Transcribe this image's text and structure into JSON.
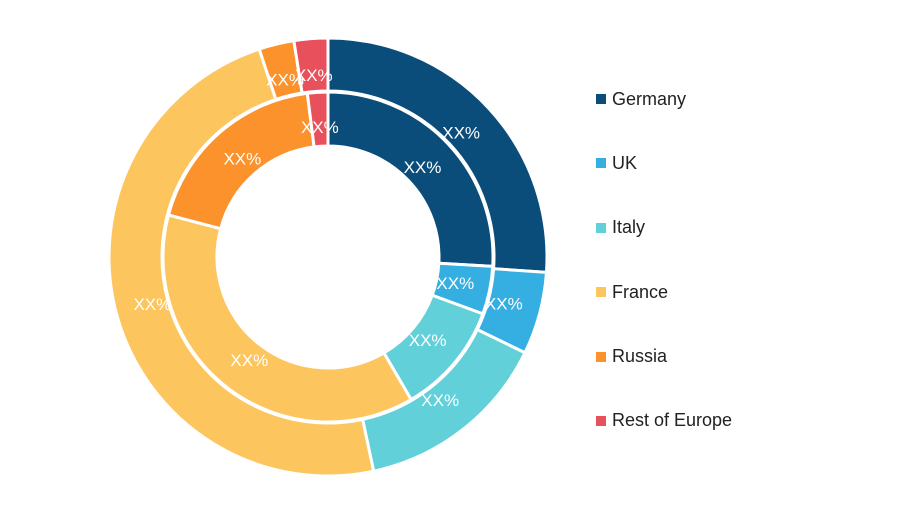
{
  "chart_data": {
    "type": "pie",
    "subtype": "nested-donut",
    "categories": [
      "Germany",
      "UK",
      "Italy",
      "France",
      "Russia",
      "Rest of Europe"
    ],
    "colors": [
      "#0b4d7a",
      "#35aee2",
      "#62d0d9",
      "#fdc55d",
      "#fb922c",
      "#e8505b"
    ],
    "series": [
      {
        "ring": "outer",
        "values": [
          26.2,
          6.1,
          14.5,
          48.4,
          2.6,
          2.5
        ],
        "labels": [
          "XX%",
          "XX%",
          "XX%",
          "XX%",
          "XX%",
          "XX%"
        ]
      },
      {
        "ring": "inner",
        "values": [
          25.9,
          4.7,
          11.0,
          37.5,
          18.9,
          2.0
        ],
        "labels": [
          "XX%",
          "XX%",
          "XX%",
          "XX%",
          "XX%",
          "XX%"
        ]
      }
    ],
    "title": "",
    "legend_position": "right"
  }
}
